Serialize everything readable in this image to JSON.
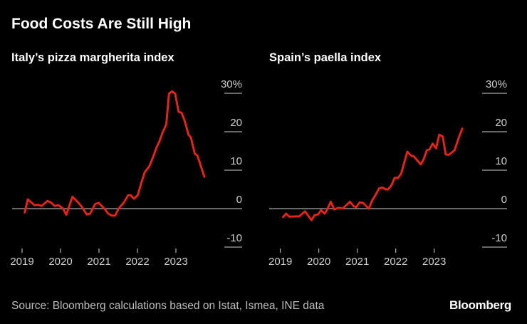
{
  "title": "Food Costs Are Still High",
  "source": "Source: Bloomberg calculations based on Istat, Ismea, INE data",
  "logo": "Bloomberg",
  "colors": {
    "line": "#e1251b",
    "background": "#000000",
    "axis": "#cfcfcf"
  },
  "chart_data": [
    {
      "type": "line",
      "title": "Italy’s pizza margherita index",
      "ylim": [
        -10,
        30
      ],
      "yticks": [
        30,
        20,
        10,
        0,
        -10
      ],
      "ytick_labels": [
        "30%",
        "20",
        "10",
        "0",
        "-10"
      ],
      "xticks": [
        2019,
        2020,
        2021,
        2022,
        2023
      ],
      "xtick_labels": [
        "2019",
        "2020",
        "2021",
        "2022",
        "2023"
      ],
      "x": [
        2019.07,
        2019.15,
        2019.32,
        2019.41,
        2019.51,
        2019.66,
        2019.75,
        2019.85,
        2019.94,
        2020.06,
        2020.15,
        2020.31,
        2020.46,
        2020.56,
        2020.68,
        2020.77,
        2020.9,
        2020.99,
        2021.14,
        2021.24,
        2021.33,
        2021.42,
        2021.51,
        2021.64,
        2021.76,
        2021.82,
        2021.91,
        2022.01,
        2022.1,
        2022.19,
        2022.31,
        2022.41,
        2022.5,
        2022.56,
        2022.65,
        2022.75,
        2022.82,
        2022.9,
        2022.98,
        2023.07,
        2023.15,
        2023.23,
        2023.33,
        2023.39,
        2023.49,
        2023.56,
        2023.74
      ],
      "y": [
        -1.0,
        2.4,
        0.9,
        1.0,
        0.7,
        2.0,
        1.6,
        0.7,
        0.9,
        0.1,
        -1.6,
        3.1,
        1.6,
        0.4,
        -1.5,
        -1.3,
        1.2,
        1.5,
        0,
        -1.3,
        -1.8,
        -1.8,
        0,
        1.5,
        3.5,
        3.5,
        2.6,
        3.5,
        6.7,
        9.5,
        11.0,
        13.5,
        16.0,
        17.2,
        19.7,
        21.9,
        29.9,
        30.5,
        29.9,
        25.2,
        24.9,
        22.8,
        19.2,
        18.5,
        14.3,
        13.8,
        8.3
      ]
    },
    {
      "type": "line",
      "title": "Spain’s paella index",
      "ylim": [
        -10,
        30
      ],
      "yticks": [
        30,
        20,
        10,
        0,
        -10
      ],
      "ytick_labels": [
        "30%",
        "20",
        "10",
        "0",
        "-10"
      ],
      "xticks": [
        2019,
        2020,
        2021,
        2022,
        2023
      ],
      "xtick_labels": [
        "2019",
        "2020",
        "2021",
        "2022",
        "2023"
      ],
      "x": [
        2019.07,
        2019.15,
        2019.23,
        2019.49,
        2019.64,
        2019.81,
        2019.89,
        2019.98,
        2020.06,
        2020.15,
        2020.21,
        2020.31,
        2020.4,
        2020.51,
        2020.63,
        2020.81,
        2020.91,
        2020.97,
        2021.06,
        2021.15,
        2021.3,
        2021.39,
        2021.47,
        2021.57,
        2021.65,
        2021.74,
        2021.8,
        2021.89,
        2021.97,
        2022.06,
        2022.14,
        2022.3,
        2022.4,
        2022.47,
        2022.65,
        2022.73,
        2022.81,
        2022.88,
        2022.96,
        2023.05,
        2023.13,
        2023.22,
        2023.3,
        2023.38,
        2023.53,
        2023.64,
        2023.73
      ],
      "y": [
        -2.2,
        -1.3,
        -2.1,
        -2.0,
        -0.7,
        -3.0,
        -1.7,
        -1.5,
        -0.4,
        -1.3,
        -0.4,
        1.8,
        -0.2,
        0.2,
        0.1,
        1.8,
        0.6,
        0.4,
        1.6,
        1.5,
        0,
        2.2,
        3.5,
        5.3,
        5.5,
        5.0,
        5.0,
        6.1,
        8.0,
        8.0,
        9.1,
        14.8,
        13.8,
        13.6,
        11.5,
        12.9,
        15.2,
        15.4,
        16.9,
        15.7,
        19.2,
        18.8,
        14.1,
        14.0,
        15.2,
        18.5,
        20.8
      ]
    }
  ]
}
